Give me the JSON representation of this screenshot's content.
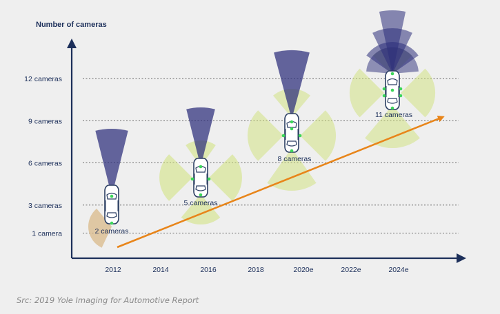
{
  "chart_data": {
    "type": "scatter",
    "ylabel": "Number of cameras",
    "xlabel": "",
    "x_ticks": [
      "2012",
      "2014",
      "2016",
      "2018",
      "2020e",
      "2022e",
      "2024e"
    ],
    "y_ticks": [
      {
        "value": 1,
        "label": "1 camera"
      },
      {
        "value": 3,
        "label": "3 cameras"
      },
      {
        "value": 6,
        "label": "6 cameras"
      },
      {
        "value": 9,
        "label": "9 cameras"
      },
      {
        "value": 12,
        "label": "12 cameras"
      }
    ],
    "ylim": [
      -0.5,
      15
    ],
    "grid": "horizontal-dashed",
    "points": [
      {
        "x": "2012",
        "y": 2,
        "label": "2 cameras"
      },
      {
        "x": "2016",
        "y": 5,
        "label": "5 cameras"
      },
      {
        "x": "2020e",
        "y": 8,
        "label": "8 cameras"
      },
      {
        "x": "2024e",
        "y": 11,
        "label": "11 cameras"
      }
    ],
    "trend": {
      "from": "2012",
      "to": "2024e+",
      "color": "#e8851a"
    },
    "colors": {
      "axis": "#1c2f5a",
      "long_range": "#2b2d7a",
      "surround": "#cfe27a",
      "rear": "#d9b98a",
      "car": "#2c3f63",
      "sensor": "#3cd65a"
    }
  },
  "source": "Src: 2019 Yole Imaging for Automotive Report"
}
